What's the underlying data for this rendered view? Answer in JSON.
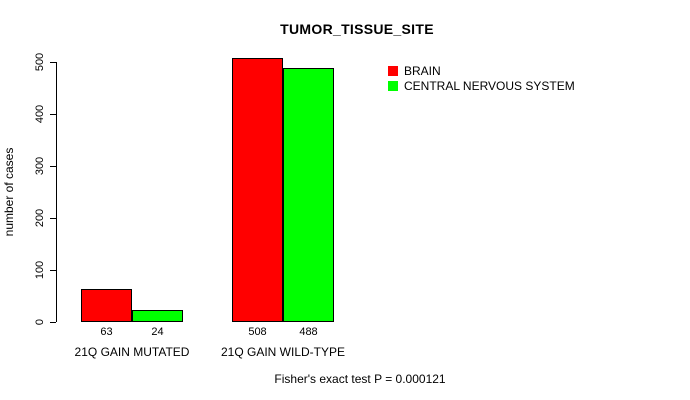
{
  "chart_data": {
    "type": "bar",
    "title": "TUMOR_TISSUE_SITE",
    "ylabel": "number of cases",
    "xlabel": "",
    "categories": [
      "21Q GAIN MUTATED",
      "21Q GAIN WILD-TYPE"
    ],
    "series": [
      {
        "name": "BRAIN",
        "color": "#FF0000",
        "values": [
          63,
          508
        ]
      },
      {
        "name": "CENTRAL NERVOUS SYSTEM",
        "color": "#00FF00",
        "values": [
          24,
          488
        ]
      }
    ],
    "bar_value_labels": [
      [
        63,
        24
      ],
      [
        508,
        488
      ]
    ],
    "yticks": [
      0,
      100,
      200,
      300,
      400,
      500
    ],
    "ylim": [
      0,
      500
    ],
    "grid": false,
    "legend_position": "top-right",
    "annotation": "Fisher's exact test P = 0.000121"
  },
  "colors": {
    "background": "#FFFFFF",
    "axis": "#000000",
    "text": "#000000"
  }
}
